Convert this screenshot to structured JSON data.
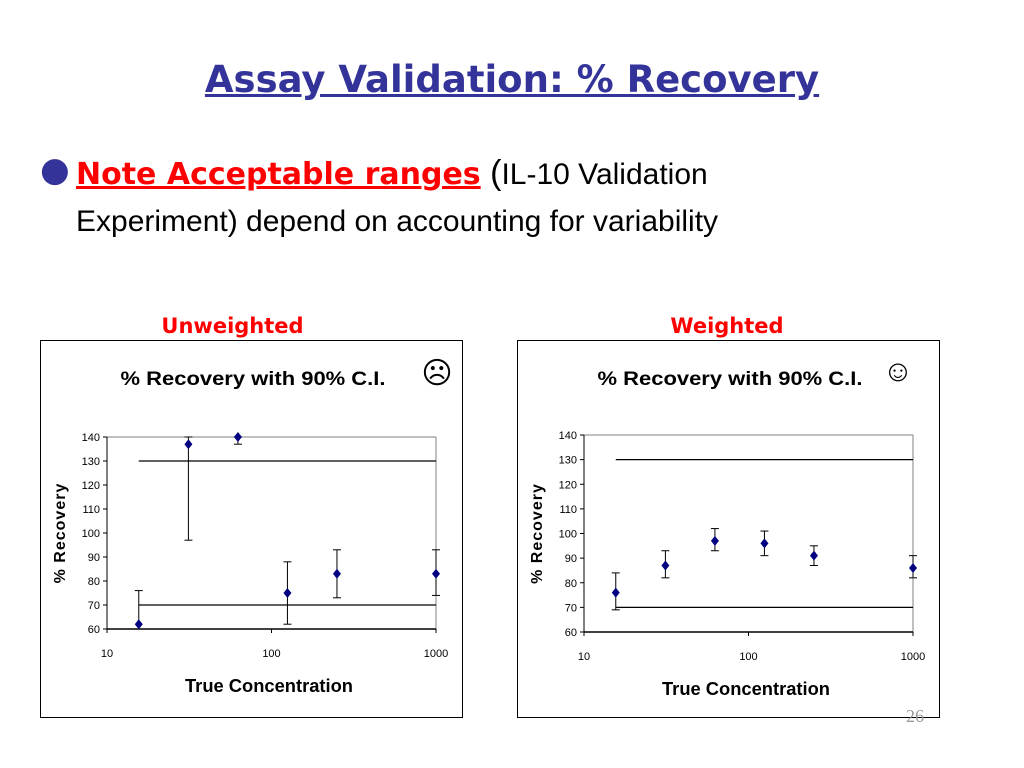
{
  "slide": {
    "title": "Assay Validation: % Recovery",
    "bullet": {
      "highlight": "Note Acceptable ranges",
      "open_paren": " (",
      "small_text": "IL-10 Validation",
      "rest": "Experiment) depend on accounting for variability"
    },
    "page_number": "26",
    "colors": {
      "title": "#333399",
      "highlight": "#ff0000",
      "marker": "#000080"
    }
  },
  "panels": {
    "left": {
      "label": "Unweighted",
      "face": "☹",
      "face_icon": "sad-face-icon"
    },
    "right": {
      "label": "Weighted",
      "face": "☺",
      "face_icon": "smiley-face-icon"
    }
  },
  "chart_data": [
    {
      "type": "scatter",
      "title": "% Recovery with 90% C.I.",
      "xlabel": "True Concentration",
      "ylabel": "% Recovery",
      "x_scale": "log",
      "xlim": [
        10,
        1000
      ],
      "ylim": [
        60,
        140
      ],
      "x_ticks": [
        10,
        100,
        1000
      ],
      "x_tick_labels": [
        "10",
        "100",
        "1000"
      ],
      "y_ticks": [
        60,
        70,
        80,
        90,
        100,
        110,
        120,
        130,
        140
      ],
      "y_tick_labels": [
        "60",
        "70",
        "80",
        "90",
        "100",
        "110",
        "120",
        "130",
        "140"
      ],
      "acceptance_limits": {
        "lower": 70,
        "upper": 130,
        "x_range": [
          15.6,
          1000
        ]
      },
      "points": [
        {
          "x": 15.6,
          "y": 62,
          "ci_low": 60,
          "ci_high": 76
        },
        {
          "x": 31.25,
          "y": 137,
          "ci_low": 97,
          "ci_high": 140
        },
        {
          "x": 62.5,
          "y": 140,
          "ci_low": 137,
          "ci_high": 140
        },
        {
          "x": 125,
          "y": 75,
          "ci_low": 62,
          "ci_high": 88
        },
        {
          "x": 250,
          "y": 83,
          "ci_low": 73,
          "ci_high": 93
        },
        {
          "x": 1000,
          "y": 83,
          "ci_low": 74,
          "ci_high": 93
        }
      ]
    },
    {
      "type": "scatter",
      "title": "% Recovery with 90% C.I.",
      "xlabel": "True Concentration",
      "ylabel": "% Recovery",
      "x_scale": "log",
      "xlim": [
        10,
        1000
      ],
      "ylim": [
        60,
        140
      ],
      "x_ticks": [
        10,
        100,
        1000
      ],
      "x_tick_labels": [
        "10",
        "100",
        "1000"
      ],
      "y_ticks": [
        60,
        70,
        80,
        90,
        100,
        110,
        120,
        130,
        140
      ],
      "y_tick_labels": [
        "60",
        "70",
        "80",
        "90",
        "100",
        "110",
        "120",
        "130",
        "140"
      ],
      "acceptance_limits": {
        "lower": 70,
        "upper": 130,
        "x_range": [
          15.6,
          1000
        ]
      },
      "points": [
        {
          "x": 15.6,
          "y": 76,
          "ci_low": 69,
          "ci_high": 84
        },
        {
          "x": 31.25,
          "y": 87,
          "ci_low": 82,
          "ci_high": 93
        },
        {
          "x": 62.5,
          "y": 97,
          "ci_low": 93,
          "ci_high": 102
        },
        {
          "x": 125,
          "y": 96,
          "ci_low": 91,
          "ci_high": 101
        },
        {
          "x": 250,
          "y": 91,
          "ci_low": 87,
          "ci_high": 95
        },
        {
          "x": 1000,
          "y": 86,
          "ci_low": 82,
          "ci_high": 91
        }
      ]
    }
  ]
}
